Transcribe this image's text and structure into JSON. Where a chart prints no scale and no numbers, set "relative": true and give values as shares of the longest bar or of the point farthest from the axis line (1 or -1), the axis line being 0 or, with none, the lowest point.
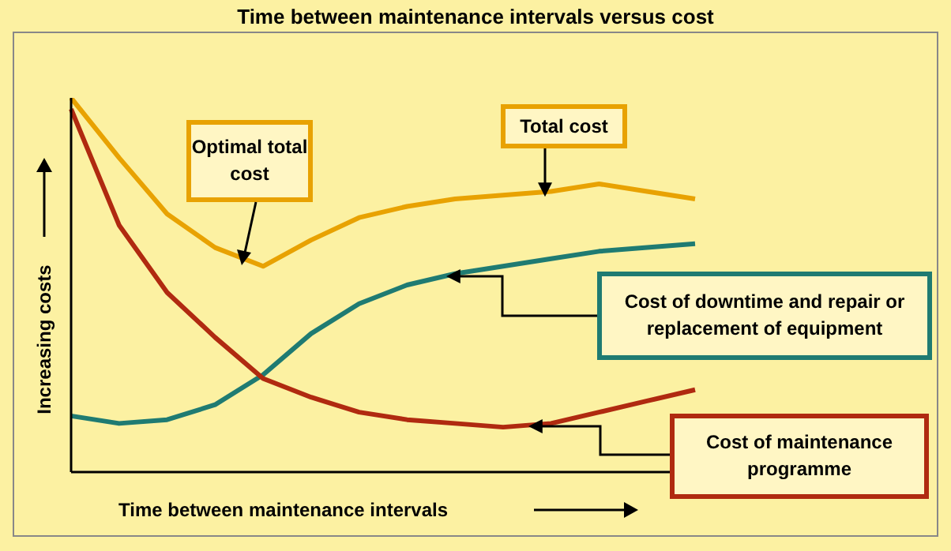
{
  "chart_data": {
    "type": "line",
    "title": "Time between maintenance intervals versus cost",
    "xlabel": "Time between maintenance intervals",
    "ylabel": "Increasing costs",
    "relative": true,
    "legend": false,
    "grid": false,
    "marker": "none",
    "categories": [
      null,
      null,
      null,
      null,
      null,
      null,
      null,
      null,
      null,
      null,
      null,
      null,
      null,
      null
    ],
    "annotations": [
      "Optimal total cost"
    ],
    "series": [
      {
        "name": "Total cost",
        "color": "#e8a202",
        "values": [
          1,
          0.84,
          0.69,
          0.6,
          0.55,
          0.62,
          0.68,
          0.71,
          0.73,
          0.74,
          0.75,
          0.77,
          0.75,
          0.73
        ]
      },
      {
        "name": "Cost of downtime and repair or replacement of equipment",
        "color": "#1f7b72",
        "values": [
          0.15,
          0.13,
          0.14,
          0.18,
          0.26,
          0.37,
          0.45,
          0.5,
          0.53,
          0.55,
          0.57,
          0.59,
          0.6,
          0.61
        ]
      },
      {
        "name": "Cost of maintenance programme",
        "color": "#b02a10",
        "values": [
          0.97,
          0.66,
          0.48,
          0.36,
          0.25,
          0.2,
          0.16,
          0.14,
          0.13,
          0.12,
          0.13,
          0.16,
          0.19,
          0.22
        ]
      }
    ]
  }
}
